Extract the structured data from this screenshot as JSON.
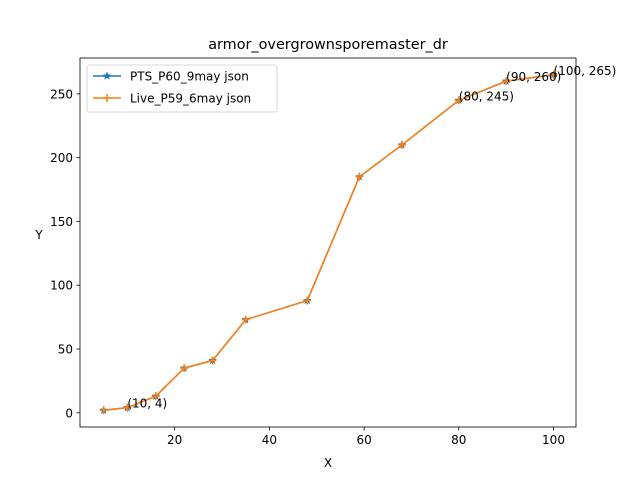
{
  "chart_data": {
    "type": "line",
    "title": "armor_overgrownsporemaster_dr",
    "xlabel": "X",
    "ylabel": "Y",
    "xlim": [
      0,
      104.75
    ],
    "ylim": [
      -11.15,
      278.15
    ],
    "xticks": [
      20,
      40,
      60,
      80,
      100
    ],
    "yticks": [
      0,
      50,
      100,
      150,
      200,
      250
    ],
    "legend_position": "top-left",
    "grid": false,
    "x": [
      5,
      10,
      16,
      22,
      28,
      35,
      48,
      59,
      68,
      80,
      90,
      100
    ],
    "series": [
      {
        "name": "PTS_P60_9may json",
        "color": "#1f77b4",
        "marker": "star",
        "values": [
          2,
          4,
          13,
          35,
          41,
          73,
          88,
          185,
          210,
          245,
          260,
          265
        ]
      },
      {
        "name": "Live_P59_6may json",
        "color": "#ff7f0e",
        "marker": "plus",
        "values": [
          2,
          4,
          13,
          35,
          41,
          73,
          88,
          185,
          210,
          245,
          260,
          265
        ]
      }
    ],
    "annotations": [
      {
        "x": 10,
        "y": 4,
        "text": "(10, 4)"
      },
      {
        "x": 80,
        "y": 245,
        "text": "(80, 245)"
      },
      {
        "x": 90,
        "y": 260,
        "text": "(90, 260)"
      },
      {
        "x": 100,
        "y": 265,
        "text": "(100, 265)"
      }
    ]
  }
}
